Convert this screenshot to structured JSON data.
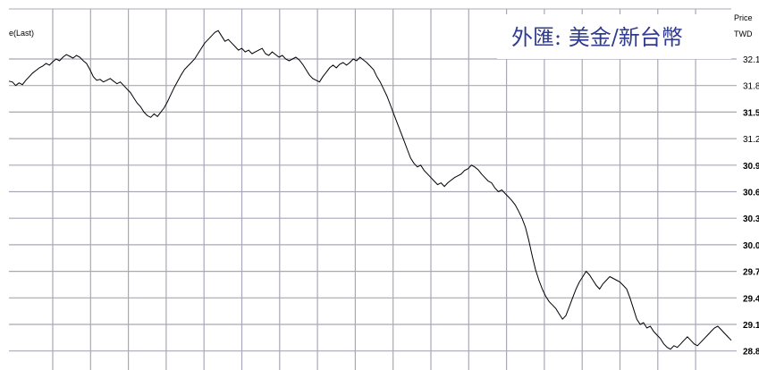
{
  "chart_data": {
    "type": "line",
    "title": "外匯: 美金/新台幣",
    "legend_label": "e(Last)",
    "axis_title_line1": "Price",
    "axis_title_line2": "TWD",
    "y_ticks": [
      {
        "value": 32.1,
        "label": "32.1"
      },
      {
        "value": 31.8,
        "label": "31.8"
      },
      {
        "value": 31.5,
        "label": "31.5"
      },
      {
        "value": 31.2,
        "label": "31.2"
      },
      {
        "value": 30.9,
        "label": "30.9"
      },
      {
        "value": 30.6,
        "label": "30.6"
      },
      {
        "value": 30.3,
        "label": "30.3"
      },
      {
        "value": 30.0,
        "label": "30.0"
      },
      {
        "value": 29.7,
        "label": "29.7"
      },
      {
        "value": 29.4,
        "label": "29.4"
      },
      {
        "value": 29.1,
        "label": "29.1"
      },
      {
        "value": 28.8,
        "label": "28.8"
      }
    ],
    "bold_ticks": [
      "31.5",
      "30.9",
      "30.6",
      "30.3",
      "30.0",
      "29.7",
      "29.4",
      "29.1",
      "28.8"
    ],
    "ylim": [
      28.75,
      32.45
    ],
    "grid": true,
    "colors": {
      "line": "#000000",
      "grid": "#a8a8b8",
      "title": "#2e3b8f"
    },
    "series": [
      {
        "values": [
          31.85,
          31.84,
          31.8,
          31.83,
          31.81,
          31.86,
          31.9,
          31.94,
          31.97,
          32.0,
          32.02,
          32.05,
          32.03,
          32.07,
          32.1,
          32.08,
          32.12,
          32.15,
          32.13,
          32.11,
          32.14,
          32.12,
          32.08,
          32.05,
          31.98,
          31.9,
          31.86,
          31.87,
          31.84,
          31.86,
          31.88,
          31.85,
          31.82,
          31.84,
          31.8,
          31.76,
          31.72,
          31.66,
          31.6,
          31.56,
          31.5,
          31.46,
          31.44,
          31.48,
          31.45,
          31.5,
          31.55,
          31.62,
          31.7,
          31.78,
          31.85,
          31.92,
          31.98,
          32.02,
          32.06,
          32.1,
          32.16,
          32.22,
          32.28,
          32.32,
          32.36,
          32.4,
          32.42,
          32.36,
          32.3,
          32.32,
          32.28,
          32.24,
          32.2,
          32.22,
          32.18,
          32.2,
          32.16,
          32.18,
          32.2,
          32.22,
          32.16,
          32.14,
          32.18,
          32.15,
          32.12,
          32.14,
          32.1,
          32.08,
          32.1,
          32.12,
          32.09,
          32.04,
          31.98,
          31.92,
          31.88,
          31.86,
          31.84,
          31.9,
          31.95,
          32.0,
          32.03,
          32.0,
          32.04,
          32.06,
          32.03,
          32.06,
          32.1,
          32.08,
          32.12,
          32.09,
          32.06,
          32.02,
          31.98,
          31.9,
          31.84,
          31.76,
          31.68,
          31.58,
          31.48,
          31.38,
          31.28,
          31.18,
          31.08,
          30.98,
          30.92,
          30.88,
          30.9,
          30.84,
          30.8,
          30.76,
          30.72,
          30.68,
          30.7,
          30.66,
          30.7,
          30.73,
          30.76,
          30.78,
          30.8,
          30.84,
          30.86,
          30.9,
          30.88,
          30.85,
          30.8,
          30.76,
          30.72,
          30.7,
          30.64,
          30.6,
          30.62,
          30.58,
          30.54,
          30.5,
          30.45,
          30.38,
          30.3,
          30.2,
          30.05,
          29.88,
          29.72,
          29.6,
          29.5,
          29.42,
          29.36,
          29.32,
          29.28,
          29.22,
          29.16,
          29.2,
          29.3,
          29.4,
          29.5,
          29.58,
          29.64,
          29.7,
          29.66,
          29.6,
          29.54,
          29.5,
          29.56,
          29.6,
          29.64,
          29.62,
          29.6,
          29.58,
          29.54,
          29.5,
          29.4,
          29.28,
          29.16,
          29.1,
          29.12,
          29.06,
          29.08,
          29.02,
          28.98,
          28.94,
          28.88,
          28.84,
          28.82,
          28.86,
          28.84,
          28.88,
          28.92,
          28.96,
          28.92,
          28.88,
          28.86,
          28.9,
          28.94,
          28.98,
          29.02,
          29.06,
          29.08,
          29.04,
          29.0,
          28.96,
          28.92
        ]
      }
    ]
  }
}
